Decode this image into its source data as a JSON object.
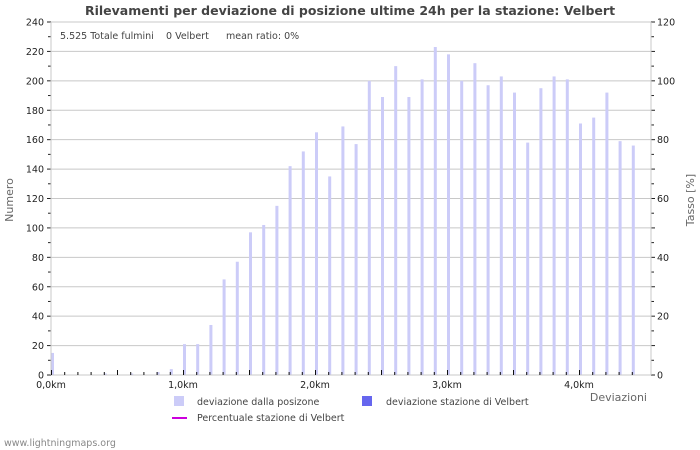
{
  "title": "Rilevamenti per deviazione di posizione ultime 24h per la stazione: Velbert",
  "info": {
    "total": "5.525 Totale fulmini",
    "station": "0 Velbert",
    "mean_ratio": "mean ratio: 0%"
  },
  "axes": {
    "left_label": "Numero",
    "right_label": "Tasso [%]",
    "x_label": "Deviazioni",
    "left_ticks": [
      "0",
      "20",
      "40",
      "60",
      "80",
      "100",
      "120",
      "140",
      "160",
      "180",
      "200",
      "220",
      "240"
    ],
    "right_ticks": [
      "0",
      "20",
      "40",
      "60",
      "80",
      "100",
      "120"
    ],
    "x_ticks": [
      "0,0km",
      "1,0km",
      "2,0km",
      "3,0km",
      "4,0km"
    ]
  },
  "legend": {
    "item1": "deviazione dalla posizone",
    "item2": "deviazione stazione di Velbert",
    "item3": "Percentuale stazione di Velbert"
  },
  "footer": "www.lightningmaps.org",
  "colors": {
    "all_bars": "#ccccf8",
    "station_bars": "#6666ee",
    "ratio_line": "#cc00dd",
    "grid": "#c8c8c8"
  },
  "chart_data": {
    "type": "bar",
    "title": "Rilevamenti per deviazione di posizione ultime 24h per la stazione: Velbert",
    "xlabel": "Deviazioni",
    "ylabel": "Numero",
    "y2label": "Tasso [%]",
    "ylim": [
      0,
      240
    ],
    "y2lim": [
      0,
      120
    ],
    "grid": true,
    "legend_position": "bottom",
    "x_unit": "km",
    "x": [
      0.0,
      0.1,
      0.2,
      0.3,
      0.4,
      0.5,
      0.6,
      0.7,
      0.8,
      0.9,
      1.0,
      1.1,
      1.2,
      1.3,
      1.4,
      1.5,
      1.6,
      1.7,
      1.8,
      1.9,
      2.0,
      2.1,
      2.2,
      2.3,
      2.4,
      2.5,
      2.6,
      2.7,
      2.8,
      2.9,
      3.0,
      3.1,
      3.2,
      3.3,
      3.4,
      3.5,
      3.6,
      3.7,
      3.8,
      3.9,
      4.0,
      4.1,
      4.2,
      4.3,
      4.4
    ],
    "series": [
      {
        "name": "deviazione dalla posizone",
        "values": [
          15,
          0,
          0,
          0,
          1,
          0,
          1,
          0,
          2,
          4,
          21,
          21,
          34,
          65,
          77,
          97,
          102,
          115,
          142,
          152,
          165,
          135,
          169,
          157,
          200,
          189,
          210,
          189,
          201,
          223,
          218,
          200,
          212,
          197,
          203,
          192,
          158,
          195,
          203,
          201,
          171,
          175,
          192,
          159,
          156
        ]
      },
      {
        "name": "deviazione stazione di Velbert",
        "values": [
          0,
          0,
          0,
          0,
          0,
          0,
          0,
          0,
          0,
          0,
          0,
          0,
          0,
          0,
          0,
          0,
          0,
          0,
          0,
          0,
          0,
          0,
          0,
          0,
          0,
          0,
          0,
          0,
          0,
          0,
          0,
          0,
          0,
          0,
          0,
          0,
          0,
          0,
          0,
          0,
          0,
          0,
          0,
          0,
          0
        ]
      },
      {
        "name": "Percentuale stazione di Velbert",
        "axis": "right",
        "values": [
          0,
          0,
          0,
          0,
          0,
          0,
          0,
          0,
          0,
          0,
          0,
          0,
          0,
          0,
          0,
          0,
          0,
          0,
          0,
          0,
          0,
          0,
          0,
          0,
          0,
          0,
          0,
          0,
          0,
          0,
          0,
          0,
          0,
          0,
          0,
          0,
          0,
          0,
          0,
          0,
          0,
          0,
          0,
          0,
          0
        ]
      }
    ]
  }
}
